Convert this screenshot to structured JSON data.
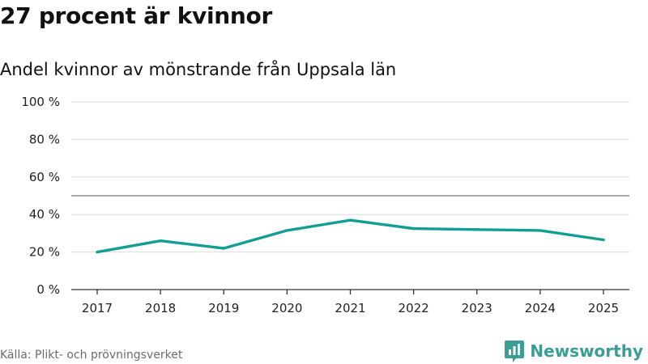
{
  "header": {
    "title": "27 procent är kvinnor",
    "subtitle": "Andel kvinnor av mönstrande från Uppsala län"
  },
  "footer": {
    "source": "Källa: Plikt- och prövningsverket",
    "brand": "Newsworthy",
    "brand_icon": "bar-chart-speech-bubble-icon"
  },
  "colors": {
    "line": "#139e94",
    "grid": "#dcdcdc",
    "reference": "#777777",
    "axis": "#333333",
    "brand": "#3a9e94"
  },
  "chart_data": {
    "type": "line",
    "title": "27 procent är kvinnor",
    "subtitle": "Andel kvinnor av mönstrande från Uppsala län",
    "x": [
      2017,
      2018,
      2019,
      2020,
      2021,
      2022,
      2023,
      2024,
      2025
    ],
    "series": [
      {
        "name": "Andel kvinnor",
        "values": [
          20,
          26,
          22,
          31.5,
          37,
          32.5,
          32,
          31.5,
          26.5
        ]
      }
    ],
    "ylim": [
      0,
      100
    ],
    "yticks": [
      0,
      20,
      40,
      60,
      80,
      100
    ],
    "ytick_labels": [
      "0 %",
      "20 %",
      "40 %",
      "60 %",
      "80 %",
      "100 %"
    ],
    "reference_line": 50,
    "xlabel": "",
    "ylabel": "",
    "grid": true
  }
}
